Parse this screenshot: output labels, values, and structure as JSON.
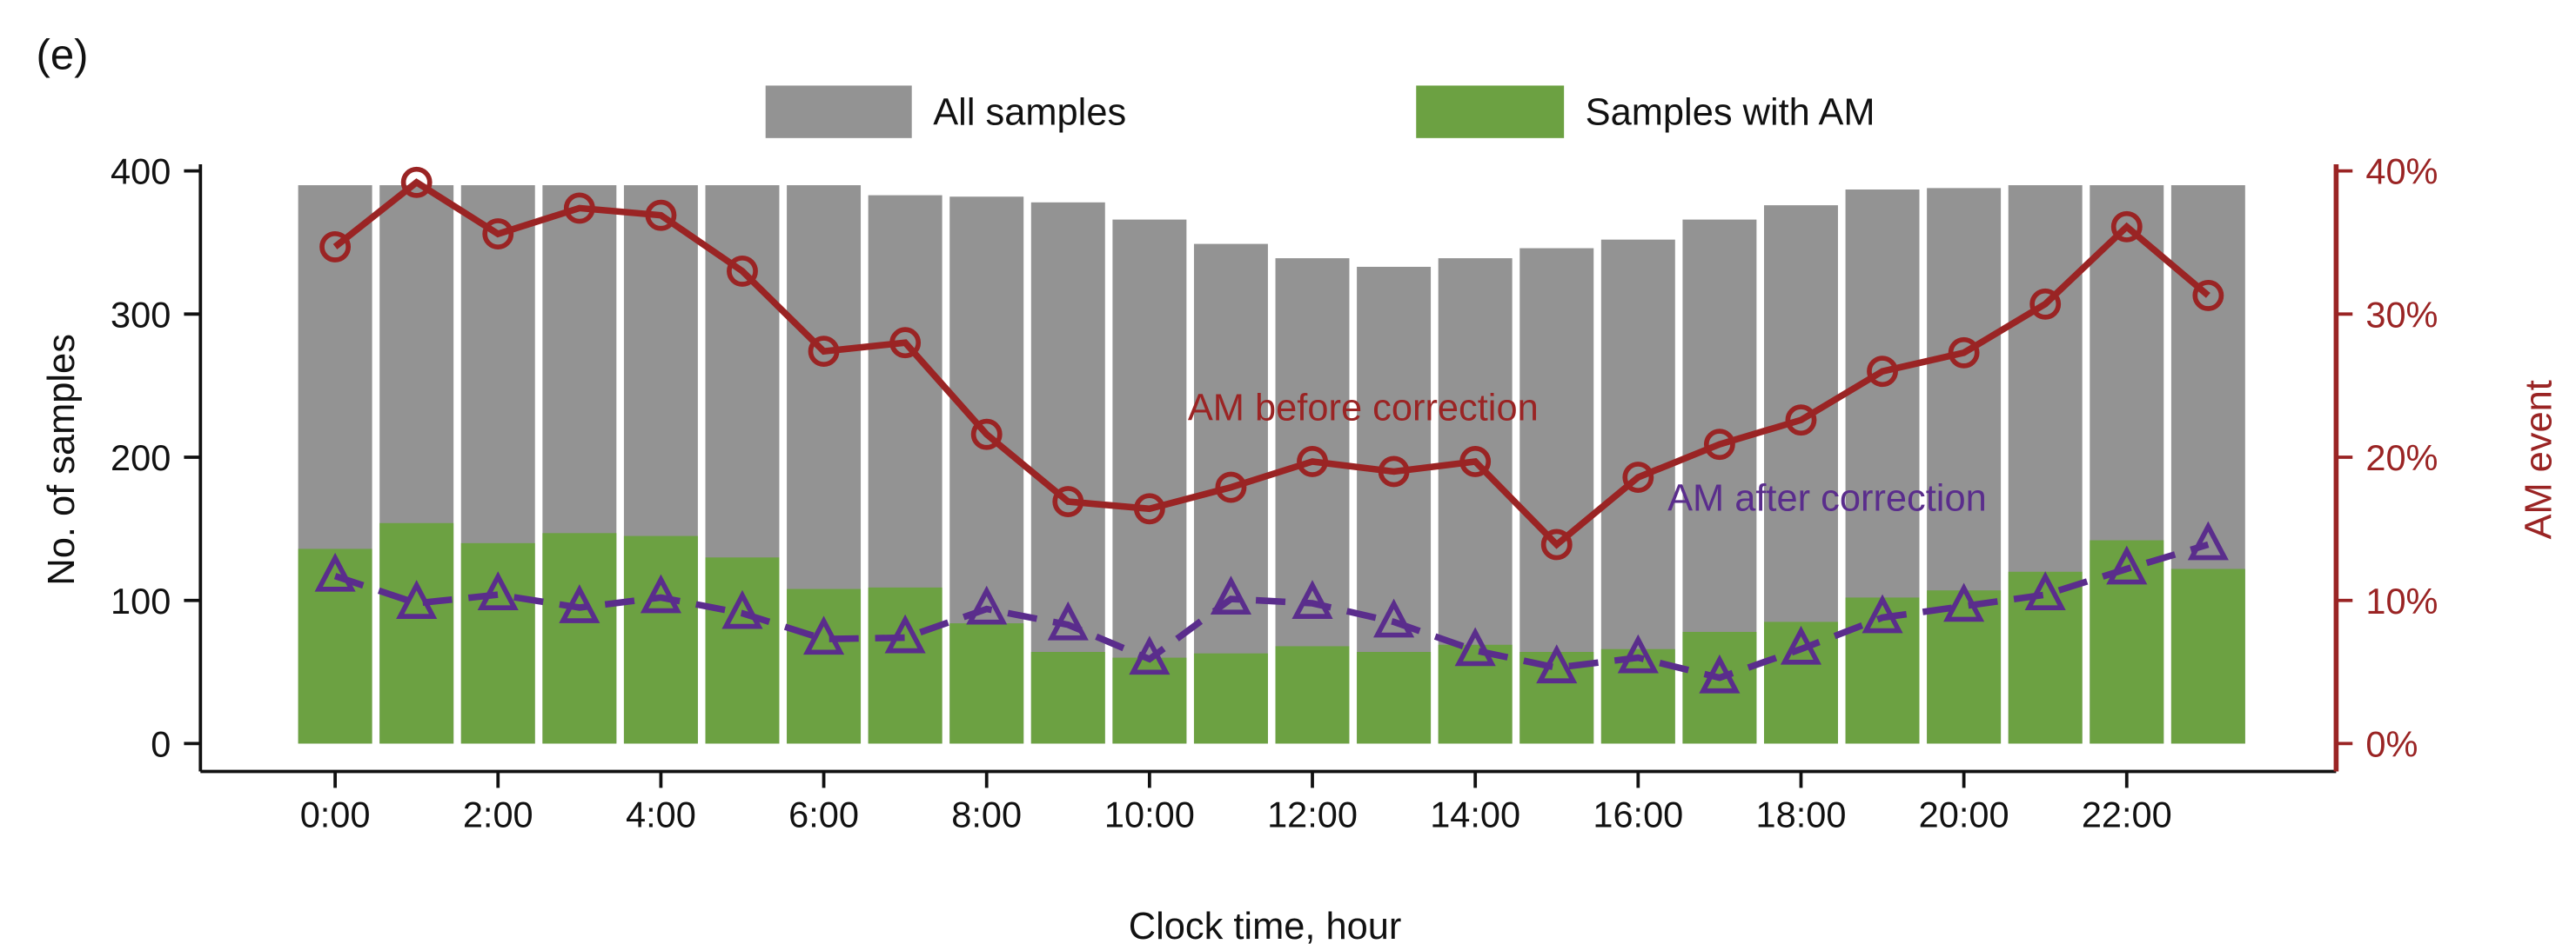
{
  "panel_label": "(e)",
  "chart_data": {
    "type": "bar",
    "xlabel": "Clock time, hour",
    "ylabel": "No. of samples",
    "ylabel_right": "AM event",
    "ylim": [
      0,
      400
    ],
    "ylim_right": [
      0,
      40
    ],
    "yticks": [
      "0",
      "100",
      "200",
      "300",
      "400"
    ],
    "yticks_right": [
      "0%",
      "10%",
      "20%",
      "30%",
      "40%"
    ],
    "grid": false,
    "legend_position": "top-center",
    "categories": [
      "0:00",
      "1:00",
      "2:00",
      "3:00",
      "4:00",
      "5:00",
      "6:00",
      "7:00",
      "8:00",
      "9:00",
      "10:00",
      "11:00",
      "12:00",
      "13:00",
      "14:00",
      "15:00",
      "16:00",
      "17:00",
      "18:00",
      "19:00",
      "20:00",
      "21:00",
      "22:00",
      "23:00"
    ],
    "xtick_labels": [
      "0:00",
      "2:00",
      "4:00",
      "6:00",
      "8:00",
      "10:00",
      "12:00",
      "14:00",
      "16:00",
      "18:00",
      "20:00",
      "22:00"
    ],
    "series": [
      {
        "name": "All samples",
        "type": "bar",
        "axis": "left",
        "color": "#939393",
        "values": [
          390,
          390,
          390,
          390,
          390,
          390,
          390,
          383,
          382,
          378,
          366,
          349,
          339,
          333,
          339,
          346,
          352,
          366,
          376,
          387,
          388,
          390,
          390,
          390
        ]
      },
      {
        "name": "Samples with AM",
        "type": "bar",
        "axis": "left",
        "color": "#6ca142",
        "values": [
          136,
          154,
          140,
          147,
          145,
          130,
          108,
          109,
          84,
          64,
          60,
          63,
          68,
          64,
          69,
          64,
          66,
          78,
          85,
          102,
          107,
          120,
          142,
          122
        ]
      },
      {
        "name": "AM before correction",
        "type": "line",
        "axis": "right",
        "unit": "%",
        "color": "#9a2424",
        "marker": "circle",
        "values": [
          34.7,
          39.2,
          35.6,
          37.4,
          36.9,
          33.0,
          27.4,
          28.0,
          21.6,
          16.9,
          16.4,
          17.9,
          19.7,
          19.0,
          19.7,
          13.9,
          18.6,
          20.9,
          22.6,
          26.0,
          27.3,
          30.7,
          36.1,
          31.3
        ]
      },
      {
        "name": "AM after correction",
        "type": "line",
        "axis": "right",
        "unit": "%",
        "color": "#5a2d8c",
        "marker": "triangle",
        "dashed": true,
        "values": [
          11.7,
          9.8,
          10.4,
          9.5,
          10.2,
          9.1,
          7.3,
          7.4,
          9.4,
          8.3,
          5.9,
          10.1,
          9.8,
          8.5,
          6.5,
          5.3,
          6.0,
          4.6,
          6.6,
          8.8,
          9.6,
          10.4,
          12.2,
          13.9
        ]
      }
    ]
  }
}
